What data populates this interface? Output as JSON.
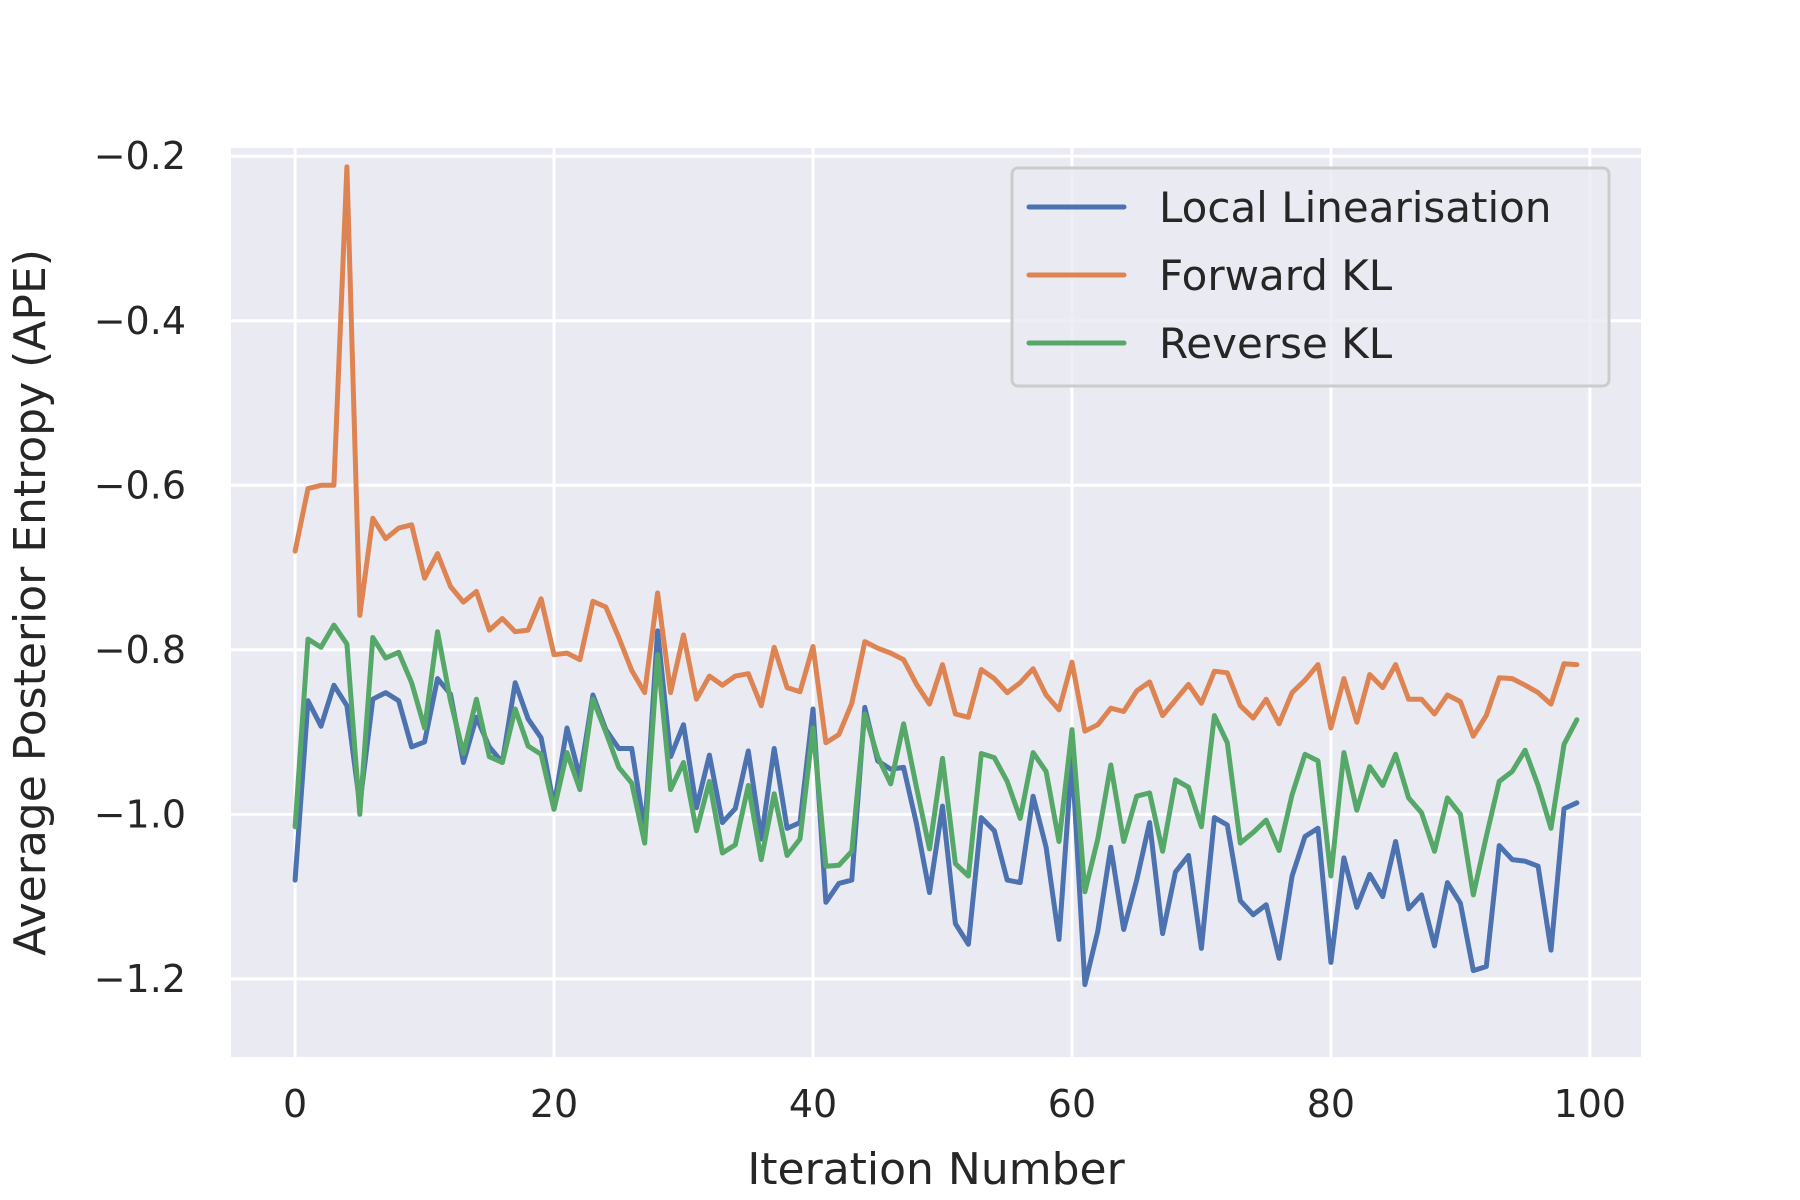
{
  "chart_data": {
    "type": "line",
    "title": "",
    "xlabel": "Iteration Number",
    "ylabel": "Average Posterior Entropy (APE)",
    "xlim": [
      -4.95,
      103.95
    ],
    "ylim": [
      -1.295,
      -0.19
    ],
    "xticks": [
      0,
      20,
      40,
      60,
      80,
      100
    ],
    "yticks": [
      -1.2,
      -1.0,
      -0.8,
      -0.6,
      -0.4,
      -0.2
    ],
    "xtick_labels": [
      "0",
      "20",
      "40",
      "60",
      "80",
      "100"
    ],
    "ytick_labels": [
      "−1.2",
      "−1.0",
      "−0.8",
      "−0.6",
      "−0.4",
      "−0.2"
    ],
    "grid": true,
    "legend_position": "upper right",
    "x_start": 0,
    "series": [
      {
        "name": "Local Linearisation",
        "color": "#4c72b0",
        "values": [
          -1.08,
          -0.862,
          -0.893,
          -0.843,
          -0.868,
          -0.988,
          -0.86,
          -0.852,
          -0.862,
          -0.918,
          -0.912,
          -0.835,
          -0.854,
          -0.937,
          -0.882,
          -0.918,
          -0.937,
          -0.84,
          -0.884,
          -0.907,
          -0.99,
          -0.895,
          -0.955,
          -0.855,
          -0.897,
          -0.92,
          -0.92,
          -1.02,
          -0.777,
          -0.93,
          -0.891,
          -0.992,
          -0.928,
          -1.01,
          -0.993,
          -0.923,
          -1.03,
          -0.92,
          -1.017,
          -1.01,
          -0.872,
          -1.107,
          -1.084,
          -1.08,
          -0.87,
          -0.935,
          -0.945,
          -0.943,
          -1.012,
          -1.095,
          -0.99,
          -1.133,
          -1.158,
          -1.004,
          -1.02,
          -1.08,
          -1.083,
          -0.978,
          -1.04,
          -1.152,
          -0.93,
          -1.207,
          -1.142,
          -1.04,
          -1.14,
          -1.08,
          -1.01,
          -1.145,
          -1.07,
          -1.05,
          -1.163,
          -1.004,
          -1.013,
          -1.105,
          -1.122,
          -1.11,
          -1.175,
          -1.075,
          -1.027,
          -1.017,
          -1.18,
          -1.053,
          -1.113,
          -1.073,
          -1.1,
          -1.033,
          -1.115,
          -1.098,
          -1.16,
          -1.083,
          -1.108,
          -1.19,
          -1.185,
          -1.038,
          -1.055,
          -1.057,
          -1.063,
          -1.165,
          -0.993,
          -0.986
        ]
      },
      {
        "name": "Forward KL",
        "color": "#dd8452",
        "values": [
          -0.68,
          -0.604,
          -0.6,
          -0.6,
          -0.213,
          -0.758,
          -0.64,
          -0.665,
          -0.652,
          -0.648,
          -0.713,
          -0.683,
          -0.723,
          -0.742,
          -0.729,
          -0.776,
          -0.762,
          -0.778,
          -0.776,
          -0.738,
          -0.806,
          -0.804,
          -0.812,
          -0.741,
          -0.748,
          -0.785,
          -0.825,
          -0.852,
          -0.731,
          -0.852,
          -0.782,
          -0.86,
          -0.832,
          -0.843,
          -0.832,
          -0.829,
          -0.868,
          -0.797,
          -0.846,
          -0.851,
          -0.796,
          -0.913,
          -0.903,
          -0.865,
          -0.79,
          -0.798,
          -0.804,
          -0.812,
          -0.842,
          -0.866,
          -0.818,
          -0.878,
          -0.882,
          -0.824,
          -0.835,
          -0.852,
          -0.84,
          -0.823,
          -0.855,
          -0.873,
          -0.815,
          -0.899,
          -0.891,
          -0.871,
          -0.875,
          -0.85,
          -0.839,
          -0.88,
          -0.861,
          -0.842,
          -0.865,
          -0.826,
          -0.828,
          -0.868,
          -0.883,
          -0.86,
          -0.89,
          -0.852,
          -0.837,
          -0.818,
          -0.895,
          -0.835,
          -0.888,
          -0.83,
          -0.846,
          -0.818,
          -0.86,
          -0.86,
          -0.878,
          -0.855,
          -0.863,
          -0.905,
          -0.88,
          -0.834,
          -0.835,
          -0.843,
          -0.852,
          -0.866,
          -0.817,
          -0.818
        ]
      },
      {
        "name": "Reverse KL",
        "color": "#55a868",
        "values": [
          -1.015,
          -0.787,
          -0.797,
          -0.77,
          -0.793,
          -1.0,
          -0.785,
          -0.81,
          -0.803,
          -0.84,
          -0.895,
          -0.778,
          -0.862,
          -0.926,
          -0.86,
          -0.93,
          -0.937,
          -0.872,
          -0.917,
          -0.927,
          -0.994,
          -0.925,
          -0.97,
          -0.86,
          -0.9,
          -0.943,
          -0.962,
          -1.035,
          -0.806,
          -0.97,
          -0.937,
          -1.02,
          -0.96,
          -1.047,
          -1.037,
          -0.965,
          -1.055,
          -0.975,
          -1.05,
          -1.03,
          -0.895,
          -1.063,
          -1.062,
          -1.045,
          -0.878,
          -0.93,
          -0.963,
          -0.89,
          -0.968,
          -1.042,
          -0.932,
          -1.06,
          -1.075,
          -0.926,
          -0.931,
          -0.96,
          -1.005,
          -0.925,
          -0.948,
          -1.033,
          -0.897,
          -1.094,
          -1.03,
          -0.94,
          -1.033,
          -0.978,
          -0.974,
          -1.045,
          -0.958,
          -0.967,
          -1.015,
          -0.88,
          -0.913,
          -1.035,
          -1.022,
          -1.007,
          -1.044,
          -0.976,
          -0.927,
          -0.935,
          -1.075,
          -0.925,
          -0.995,
          -0.942,
          -0.965,
          -0.927,
          -0.98,
          -0.998,
          -1.045,
          -0.98,
          -1.0,
          -1.098,
          -1.027,
          -0.96,
          -0.948,
          -0.922,
          -0.965,
          -1.017,
          -0.915,
          -0.885
        ]
      }
    ]
  }
}
